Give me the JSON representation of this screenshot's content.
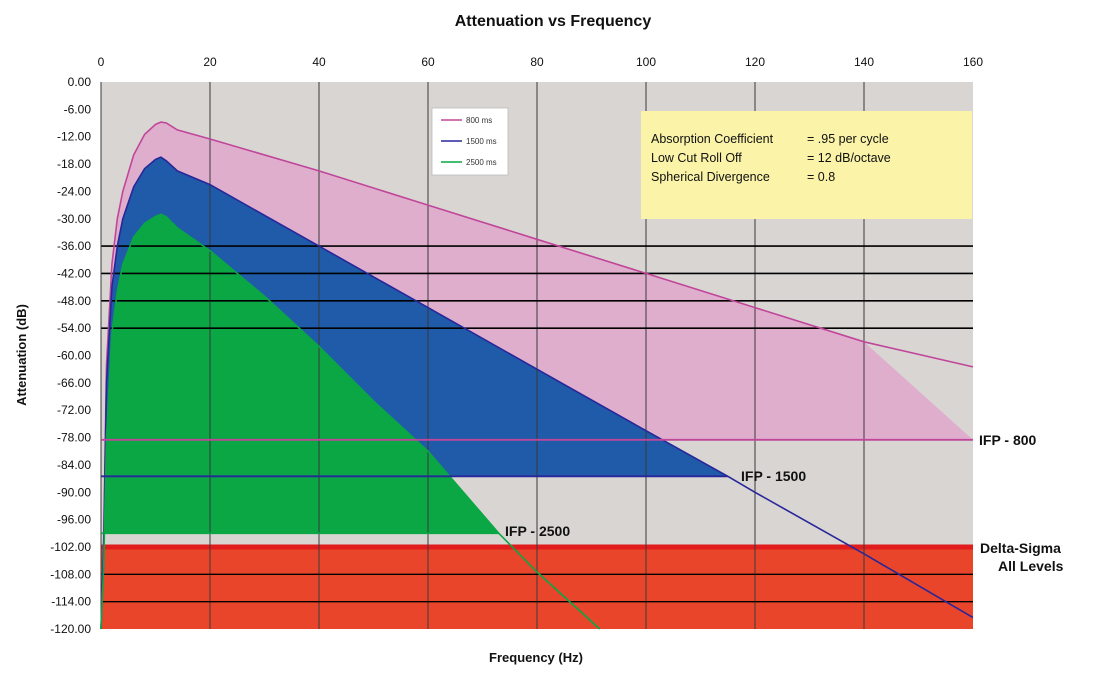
{
  "chart_data": {
    "type": "area",
    "title": "Attenuation vs Frequency",
    "xlabel": "Frequency (Hz)",
    "ylabel": "Attenuation (dB)",
    "xlim": [
      0,
      160
    ],
    "ylim": [
      -120,
      0
    ],
    "x_axis_position": "top",
    "x_ticks": [
      "0",
      "20",
      "40",
      "60",
      "80",
      "100",
      "120",
      "140",
      "160"
    ],
    "y_ticks": [
      "0.00",
      "-6.00",
      "-12.00",
      "-18.00",
      "-24.00",
      "-30.00",
      "-36.00",
      "-42.00",
      "-48.00",
      "-54.00",
      "-60.00",
      "-66.00",
      "-72.00",
      "-78.00",
      "-84.00",
      "-90.00",
      "-96.00",
      "-102.00",
      "-108.00",
      "-114.00",
      "-120.00"
    ],
    "grid": {
      "vertical": true,
      "horizontal_lines_at": [
        -36,
        -42,
        -48,
        -54
      ]
    },
    "colors": {
      "plot_bg": "#d9d5d2",
      "pink_fill": "#e0aecd",
      "pink_line": "#c0469a",
      "blue_fill": "#1f5ba8",
      "blue_line": "#28279a",
      "green_fill": "#0aa744",
      "green_line": "#0aa744",
      "red_band": "#e8452a",
      "red_edge": "#e01c1c",
      "note_bg": "#faf3a8"
    },
    "series": [
      {
        "name": "800 ms",
        "x": [
          0,
          0.5,
          1,
          2,
          3,
          4,
          6,
          8,
          10,
          11,
          12,
          14,
          20,
          40,
          60,
          80,
          100,
          120,
          140,
          160
        ],
        "y": [
          -120,
          -100,
          -62,
          -40,
          -30,
          -24,
          -16,
          -11.5,
          -9.3,
          -8.8,
          -9,
          -10.5,
          -12.5,
          -19.5,
          -27,
          -34.5,
          -42,
          -49.5,
          -57,
          -62.5
        ],
        "floor": -78.5
      },
      {
        "name": "1500 ms",
        "x": [
          0,
          0.5,
          1,
          2,
          3,
          4,
          6,
          8,
          10,
          11,
          12,
          14,
          20,
          40,
          60,
          80,
          100,
          115,
          120,
          140,
          160
        ],
        "y": [
          -120,
          -102,
          -66,
          -45,
          -36,
          -30,
          -23,
          -19,
          -17,
          -16.5,
          -17.3,
          -19.5,
          -22.5,
          -36,
          -49.5,
          -63,
          -76.5,
          -86.5,
          -90,
          -103.5,
          -117.5
        ],
        "floor": -86.5
      },
      {
        "name": "2500 ms",
        "x": [
          0,
          0.5,
          1,
          2,
          3,
          4,
          6,
          8,
          10,
          11,
          12,
          14,
          20,
          30,
          40,
          50,
          60,
          73,
          80,
          91.5
        ],
        "y": [
          -120,
          -106,
          -78,
          -55,
          -46,
          -40,
          -34,
          -31,
          -29.5,
          -29,
          -29.6,
          -32,
          -37,
          -47,
          -58,
          -70,
          -81,
          -99,
          -107.5,
          -120
        ],
        "floor": -99
      }
    ],
    "reference_lines": [
      {
        "label": "IFP - 800",
        "y": -78.5
      },
      {
        "label": "IFP - 1500",
        "y": -86.5
      },
      {
        "label": "IFP - 2500",
        "y": -99
      }
    ],
    "band": {
      "label_line1": "Delta-Sigma",
      "label_line2": "All Levels",
      "y_from": -102,
      "y_to": -120
    },
    "legend": {
      "placement": "top-left",
      "entries": [
        "800 ms",
        "1500 ms",
        "2500 ms"
      ]
    },
    "annotation": {
      "rows": [
        {
          "label": "Absorption Coefficient",
          "value": "= .95 per cycle"
        },
        {
          "label": "Low Cut Roll Off",
          "value": "= 12 dB/octave"
        },
        {
          "label": "Spherical Divergence",
          "value": "=  0.8"
        }
      ]
    }
  }
}
